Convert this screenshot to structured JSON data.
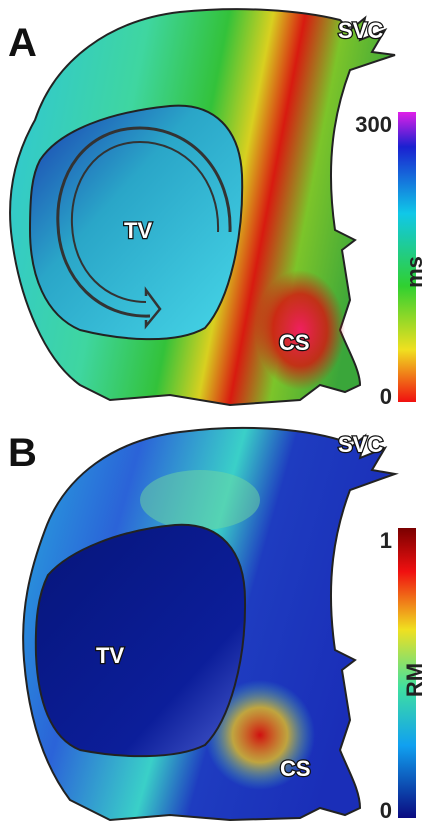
{
  "panels": [
    {
      "label": "A",
      "structures": {
        "svc": "SVC",
        "tv": "TV",
        "cs": "CS"
      },
      "colorbar": {
        "ticks": [
          300,
          0
        ],
        "label": "ms"
      }
    },
    {
      "label": "B",
      "structures": {
        "svc": "SVC",
        "tv": "TV",
        "cs": "CS"
      },
      "colorbar": {
        "ticks": [
          1,
          0
        ],
        "label": "RM"
      }
    }
  ]
}
